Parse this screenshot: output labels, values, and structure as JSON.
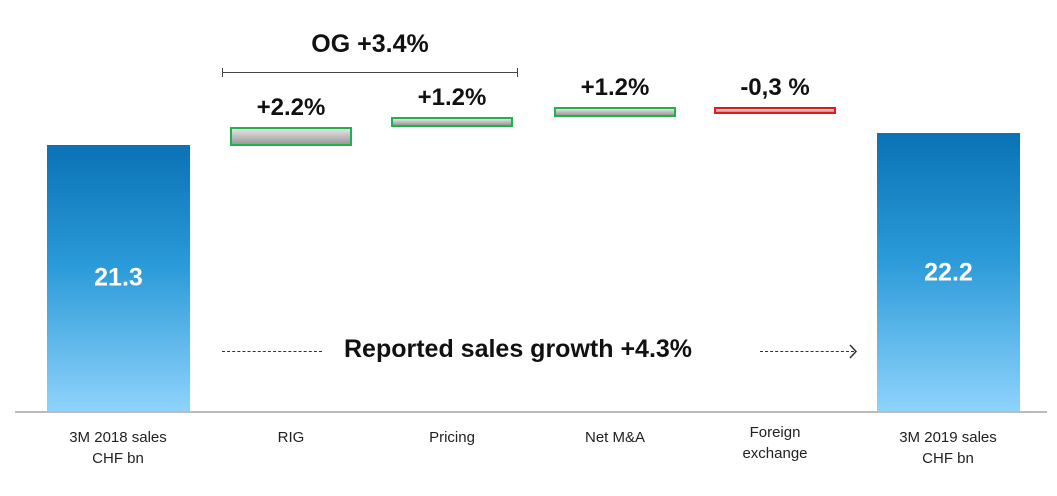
{
  "chart_data": {
    "type": "waterfall",
    "categories": [
      "3M 2018 sales CHF bn",
      "RIG",
      "Pricing",
      "Net M&A",
      "Foreign exchange",
      "3M 2019 sales CHF bn"
    ],
    "category_lines": [
      [
        "3M 2018 sales",
        "CHF bn"
      ],
      [
        "RIG"
      ],
      [
        "Pricing"
      ],
      [
        "Net M&A"
      ],
      [
        "Foreign",
        "exchange"
      ],
      [
        "3M 2019 sales",
        "CHF bn"
      ]
    ],
    "totals": {
      "start": 21.3,
      "end": 22.2
    },
    "total_labels": {
      "start": "21.3",
      "end": "22.2"
    },
    "changes_pct": [
      2.2,
      1.2,
      1.2,
      -0.3
    ],
    "change_labels": [
      "+2.2%",
      "+1.2%",
      "+1.2%",
      "-0,3 %"
    ],
    "annotations": {
      "organic_growth": "OG +3.4%",
      "reported_growth": "Reported sales growth +4.3%"
    },
    "colors": {
      "total_bar": "#0a72b5",
      "positive_border": "#22b24c",
      "negative_border": "#e8151b",
      "change_fill": "#b0b0b0"
    }
  }
}
